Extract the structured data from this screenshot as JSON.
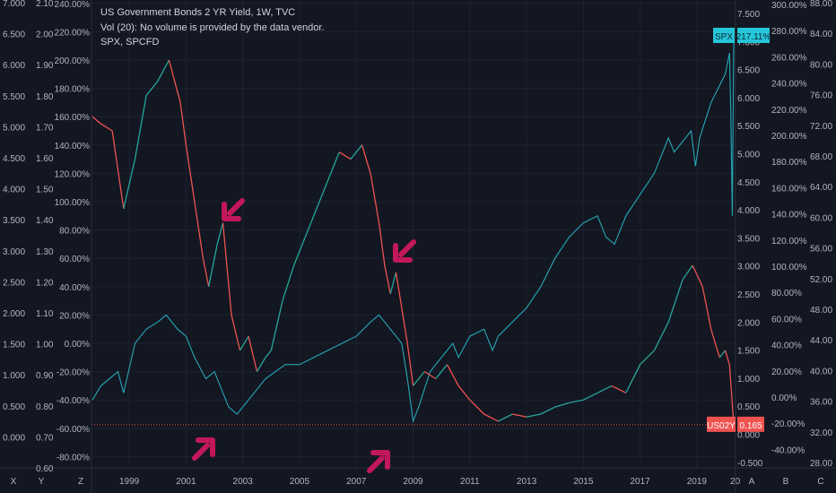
{
  "header": {
    "line1": "US Government Bonds 2 YR Yield, 1W, TVC",
    "line2": "Vol (20): No volume is provided by the data vendor.",
    "line3": "SPX, SPCFD"
  },
  "colors": {
    "background": "#131722",
    "spx": "#26a7b5",
    "bond_up": "#26a69a",
    "bond_down": "#ef5350",
    "arrow": "#c2185b",
    "label_spx": "#26c6da",
    "label_us02y": "#ef5350",
    "grid": "#1e2230"
  },
  "icons": {
    "arrows": [
      "arrow-down-left-icon",
      "arrow-down-left-icon",
      "arrow-up-right-icon",
      "arrow-up-right-icon"
    ]
  },
  "chart_data": {
    "type": "line",
    "title": "US Government Bonds 2 YR Yield, 1W, TVC",
    "x_ticks": [
      "1999",
      "2001",
      "2003",
      "2005",
      "2007",
      "2009",
      "2011",
      "2013",
      "2015",
      "2017",
      "2019",
      "20"
    ],
    "x_range": [
      1997.7,
      2020.3
    ],
    "axes": {
      "left_1": {
        "ticks": [
          "7.000",
          "6.500",
          "6.000",
          "5.500",
          "5.000",
          "4.500",
          "4.000",
          "3.500",
          "3.000",
          "2.500",
          "2.000",
          "1.500",
          "1.000",
          "0.500",
          "0.000"
        ]
      },
      "left_2": {
        "ticks": [
          "2.10",
          "2.00",
          "1.90",
          "1.80",
          "1.70",
          "1.60",
          "1.50",
          "1.40",
          "1.30",
          "1.20",
          "1.10",
          "1.00",
          "0.90",
          "0.80",
          "0.70",
          "0.60"
        ]
      },
      "left_3": {
        "ticks": [
          "240.00%",
          "220.00%",
          "200.00%",
          "180.00%",
          "160.00%",
          "140.00%",
          "120.00%",
          "100.00%",
          "80.00%",
          "60.00%",
          "40.00%",
          "20.00%",
          "0.00%",
          "-20.00%",
          "-40.00%",
          "-60.00%",
          "-80.00%"
        ]
      },
      "right_1": {
        "ticks": [
          "7.500",
          "7.000",
          "6.500",
          "6.000",
          "5.500",
          "5.000",
          "4.500",
          "4.000",
          "3.500",
          "3.000",
          "2.500",
          "2.000",
          "1.500",
          "1.000",
          "0.500",
          "0.000",
          "-0.500"
        ]
      },
      "right_2": {
        "ticks": [
          "300.00%",
          "280.00%",
          "260.00%",
          "240.00%",
          "220.00%",
          "200.00%",
          "180.00%",
          "160.00%",
          "140.00%",
          "120.00%",
          "100.00%",
          "80.00%",
          "60.00%",
          "40.00%",
          "20.00%",
          "0.00%",
          "-20.00%",
          "-40.00%"
        ]
      },
      "right_3": {
        "ticks": [
          "88.00",
          "84.00",
          "80.00",
          "76.00",
          "72.00",
          "68.00",
          "64.00",
          "60.00",
          "56.00",
          "52.00",
          "48.00",
          "44.00",
          "40.00",
          "36.00",
          "32.00",
          "28.00"
        ]
      }
    },
    "bottom_axis_letters": [
      "X",
      "Y",
      "Z",
      "A",
      "B",
      "C"
    ],
    "series": [
      {
        "name": "SPX",
        "unit": "percent change",
        "points": [
          [
            1997.7,
            -40
          ],
          [
            1998.0,
            -30
          ],
          [
            1998.6,
            -20
          ],
          [
            1998.8,
            -35
          ],
          [
            1999.2,
            0
          ],
          [
            1999.6,
            10
          ],
          [
            2000.0,
            15
          ],
          [
            2000.3,
            20
          ],
          [
            2000.7,
            10
          ],
          [
            2001.0,
            5
          ],
          [
            2001.3,
            -10
          ],
          [
            2001.7,
            -25
          ],
          [
            2002.0,
            -20
          ],
          [
            2002.5,
            -45
          ],
          [
            2002.8,
            -50
          ],
          [
            2003.2,
            -40
          ],
          [
            2003.8,
            -25
          ],
          [
            2004.5,
            -15
          ],
          [
            2005.0,
            -15
          ],
          [
            2005.5,
            -10
          ],
          [
            2006.0,
            -5
          ],
          [
            2006.5,
            0
          ],
          [
            2007.0,
            5
          ],
          [
            2007.5,
            15
          ],
          [
            2007.8,
            20
          ],
          [
            2008.2,
            10
          ],
          [
            2008.6,
            0
          ],
          [
            2008.8,
            -25
          ],
          [
            2009.0,
            -55
          ],
          [
            2009.2,
            -45
          ],
          [
            2009.6,
            -20
          ],
          [
            2010.0,
            -10
          ],
          [
            2010.4,
            0
          ],
          [
            2010.6,
            -10
          ],
          [
            2011.0,
            5
          ],
          [
            2011.5,
            10
          ],
          [
            2011.8,
            -5
          ],
          [
            2012.0,
            5
          ],
          [
            2012.5,
            15
          ],
          [
            2013.0,
            25
          ],
          [
            2013.5,
            40
          ],
          [
            2014.0,
            60
          ],
          [
            2014.5,
            75
          ],
          [
            2015.0,
            85
          ],
          [
            2015.5,
            90
          ],
          [
            2015.8,
            75
          ],
          [
            2016.1,
            70
          ],
          [
            2016.5,
            90
          ],
          [
            2017.0,
            105
          ],
          [
            2017.5,
            120
          ],
          [
            2018.0,
            145
          ],
          [
            2018.2,
            135
          ],
          [
            2018.8,
            150
          ],
          [
            2018.95,
            125
          ],
          [
            2019.1,
            145
          ],
          [
            2019.5,
            170
          ],
          [
            2020.0,
            190
          ],
          [
            2020.15,
            205
          ],
          [
            2020.2,
            160
          ],
          [
            2020.25,
            90
          ],
          [
            2020.3,
            217.11
          ]
        ]
      },
      {
        "name": "US02Y",
        "unit": "percent change",
        "points": [
          [
            1997.7,
            160
          ],
          [
            1998.0,
            155
          ],
          [
            1998.4,
            150
          ],
          [
            1998.8,
            95
          ],
          [
            1999.2,
            130
          ],
          [
            1999.6,
            175
          ],
          [
            2000.0,
            185
          ],
          [
            2000.4,
            200
          ],
          [
            2000.8,
            170
          ],
          [
            2001.0,
            140
          ],
          [
            2001.3,
            100
          ],
          [
            2001.6,
            60
          ],
          [
            2001.8,
            40
          ],
          [
            2002.1,
            70
          ],
          [
            2002.3,
            85
          ],
          [
            2002.6,
            20
          ],
          [
            2002.9,
            -5
          ],
          [
            2003.2,
            5
          ],
          [
            2003.5,
            -20
          ],
          [
            2003.8,
            -10
          ],
          [
            2004.0,
            -5
          ],
          [
            2004.4,
            30
          ],
          [
            2004.8,
            55
          ],
          [
            2005.2,
            75
          ],
          [
            2005.6,
            95
          ],
          [
            2006.0,
            115
          ],
          [
            2006.4,
            135
          ],
          [
            2006.8,
            130
          ],
          [
            2007.2,
            140
          ],
          [
            2007.5,
            120
          ],
          [
            2007.8,
            85
          ],
          [
            2008.0,
            55
          ],
          [
            2008.2,
            35
          ],
          [
            2008.4,
            50
          ],
          [
            2008.6,
            25
          ],
          [
            2008.8,
            0
          ],
          [
            2009.0,
            -30
          ],
          [
            2009.4,
            -20
          ],
          [
            2009.8,
            -25
          ],
          [
            2010.2,
            -15
          ],
          [
            2010.6,
            -30
          ],
          [
            2011.0,
            -40
          ],
          [
            2011.5,
            -50
          ],
          [
            2012.0,
            -55
          ],
          [
            2012.5,
            -50
          ],
          [
            2013.0,
            -52
          ],
          [
            2013.5,
            -50
          ],
          [
            2014.0,
            -45
          ],
          [
            2014.5,
            -42
          ],
          [
            2015.0,
            -40
          ],
          [
            2015.5,
            -35
          ],
          [
            2016.0,
            -30
          ],
          [
            2016.5,
            -35
          ],
          [
            2017.0,
            -15
          ],
          [
            2017.5,
            -5
          ],
          [
            2018.0,
            15
          ],
          [
            2018.5,
            45
          ],
          [
            2018.85,
            55
          ],
          [
            2019.2,
            40
          ],
          [
            2019.5,
            10
          ],
          [
            2019.8,
            -10
          ],
          [
            2020.0,
            -5
          ],
          [
            2020.15,
            -15
          ],
          [
            2020.3,
            -57.5
          ]
        ]
      }
    ],
    "labels": [
      {
        "text": "SPX",
        "value": "217.11%"
      },
      {
        "text": "US02Y",
        "value": "0.165"
      }
    ],
    "reference_line": {
      "name": "US02Y",
      "y": -57.5
    }
  }
}
